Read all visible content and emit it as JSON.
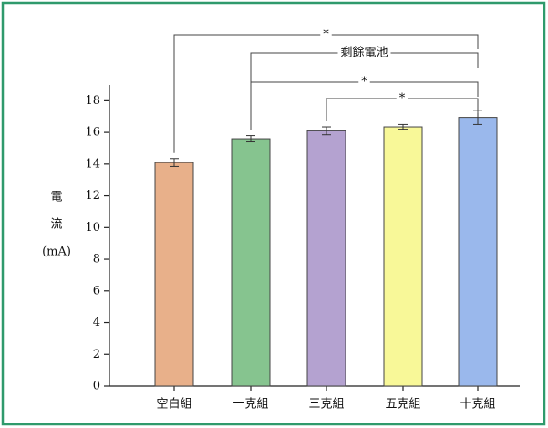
{
  "chart_data": {
    "type": "bar",
    "y_label_lines": [
      "電",
      "流",
      "(mA)"
    ],
    "categories": [
      "空白組",
      "一克組",
      "三克組",
      "五克組",
      "十克組"
    ],
    "values": [
      14.1,
      15.6,
      16.1,
      16.35,
      16.95
    ],
    "errors": [
      0.25,
      0.2,
      0.25,
      0.15,
      0.45
    ],
    "colors": [
      "#e8b08a",
      "#86c48f",
      "#b4a2d0",
      "#f8f898",
      "#9ab8ec"
    ],
    "ylim": [
      0,
      19
    ],
    "yticks": [
      0,
      2,
      4,
      6,
      8,
      10,
      12,
      14,
      16,
      18
    ],
    "brackets": [
      {
        "label": "*",
        "from": 0,
        "to": 4
      },
      {
        "label": "剩餘電池",
        "from": 1,
        "to": 4
      },
      {
        "label": "*",
        "from": 1,
        "to": 4
      },
      {
        "label": "*",
        "from": 2,
        "to": 4
      }
    ]
  }
}
